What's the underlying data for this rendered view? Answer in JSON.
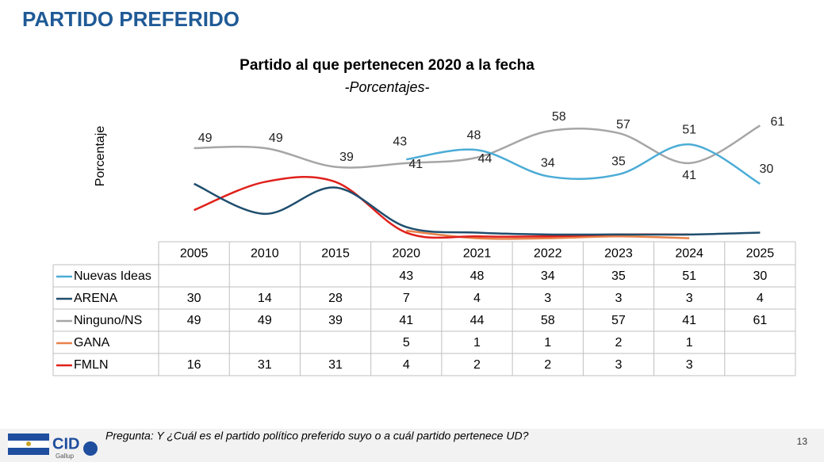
{
  "header": "PARTIDO PREFERIDO",
  "chart_data": {
    "type": "line",
    "title": "Partido al que pertenecen 2020 a la fecha",
    "subtitle": "-Porcentajes-",
    "y_label": "Porcentaje",
    "categories": [
      "2005",
      "2010",
      "2015",
      "2020",
      "2021",
      "2022",
      "2023",
      "2024",
      "2025"
    ],
    "ylim": [
      0,
      65
    ],
    "series": [
      {
        "name": "Nuevas Ideas",
        "color": "#4bacd6",
        "values": [
          null,
          null,
          null,
          43,
          48,
          34,
          35,
          51,
          30
        ]
      },
      {
        "name": "ARENA",
        "color": "#1f4e6e",
        "values": [
          30,
          14,
          28,
          7,
          4,
          3,
          3,
          3,
          4
        ]
      },
      {
        "name": "Ninguno/NS",
        "color": "#a6a6a6",
        "values": [
          49,
          49,
          39,
          41,
          44,
          58,
          57,
          41,
          61
        ]
      },
      {
        "name": "GANA",
        "color": "#e8824a",
        "values": [
          null,
          null,
          null,
          5,
          1,
          1,
          2,
          1,
          null
        ]
      },
      {
        "name": "FMLN",
        "color": "#e0201b",
        "values": [
          16,
          31,
          31,
          4,
          2,
          2,
          3,
          3,
          null
        ]
      }
    ]
  },
  "footer": {
    "question": "Pregunta: Y ¿Cuál es el partido político preferido suyo o a cuál partido pertenece UD?",
    "page": "13"
  },
  "logo": {
    "name": "CID",
    "sub": "Gallup"
  }
}
